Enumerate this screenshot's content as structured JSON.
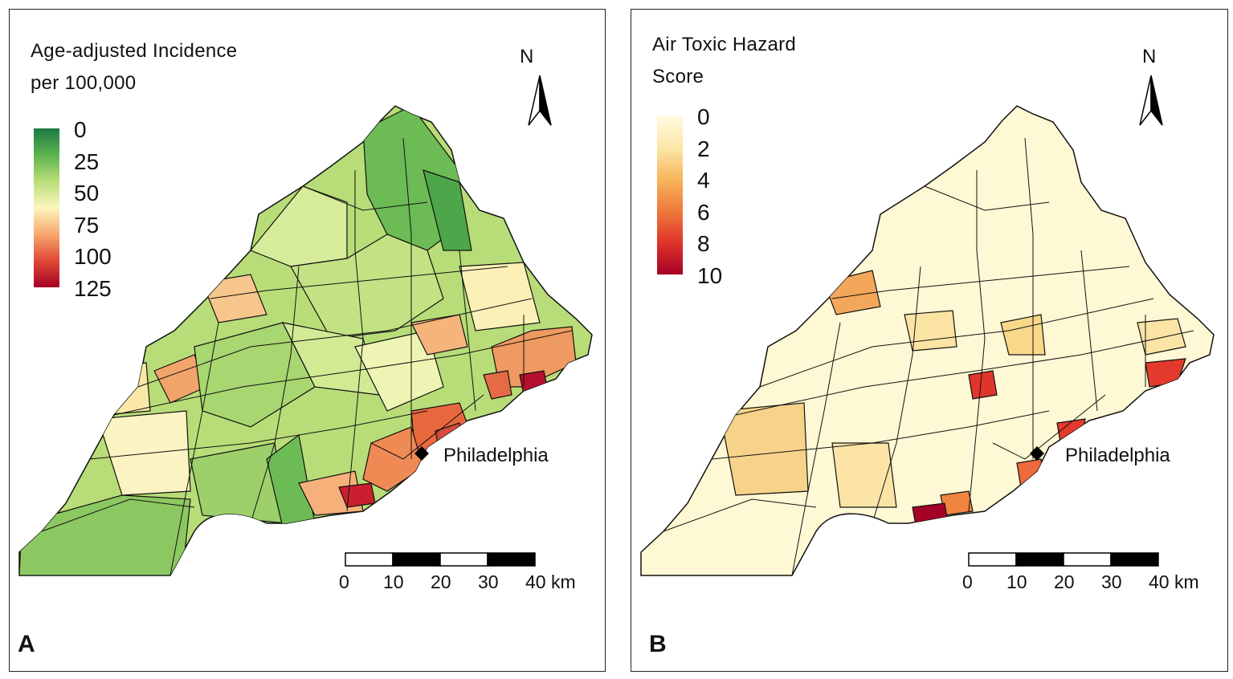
{
  "panels": [
    {
      "letter": "A",
      "legend": {
        "title_line1": "Age-adjusted Incidence",
        "title_line2": "per 100,000",
        "ticks": [
          "0",
          "25",
          "50",
          "75",
          "100",
          "125"
        ],
        "colors": [
          "#1a7a40",
          "#5fb450",
          "#b8dd78",
          "#fcf6bd",
          "#f7a56a",
          "#e04a37",
          "#a50026"
        ]
      },
      "north": "N",
      "city": "Philadelphia",
      "scale": {
        "ticks": [
          "0",
          "10",
          "20",
          "30",
          "40 km"
        ]
      }
    },
    {
      "letter": "B",
      "legend": {
        "title_line1": "Air Toxic Hazard",
        "title_line2": "Score",
        "ticks": [
          "0",
          "2",
          "4",
          "6",
          "8",
          "10"
        ],
        "colors": [
          "#fffbe0",
          "#fce7a8",
          "#f7b65c",
          "#ef7a3c",
          "#e0342a",
          "#a50026"
        ]
      },
      "north": "N",
      "city": "Philadelphia",
      "scale": {
        "ticks": [
          "0",
          "10",
          "20",
          "30",
          "40 km"
        ]
      }
    }
  ]
}
